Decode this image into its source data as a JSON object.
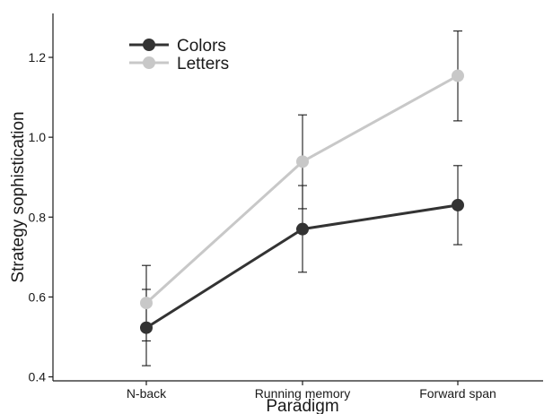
{
  "chart_data": {
    "type": "line",
    "title": "",
    "xlabel": "Paradigm",
    "ylabel": "Strategy sophistication",
    "categories": [
      "N-back",
      "Running memory",
      "Forward span"
    ],
    "ylim": [
      0.39,
      1.31
    ],
    "yticks": [
      0.4,
      0.6,
      0.8,
      1.0,
      1.2
    ],
    "ytick_labels": [
      "0.4",
      "0.6",
      "0.8",
      "1.0",
      "1.2"
    ],
    "grid": false,
    "legend_position": "top-left",
    "series": [
      {
        "name": "Colors",
        "color": "#333333",
        "values": [
          0.523,
          0.77,
          0.83
        ],
        "error_low": [
          0.428,
          0.662,
          0.731
        ],
        "error_high": [
          0.619,
          0.879,
          0.929
        ]
      },
      {
        "name": "Letters",
        "color": "#c8c8c8",
        "values": [
          0.585,
          0.939,
          1.154
        ],
        "error_low": [
          0.49,
          0.821,
          1.041
        ],
        "error_high": [
          0.679,
          1.056,
          1.266
        ]
      }
    ]
  }
}
